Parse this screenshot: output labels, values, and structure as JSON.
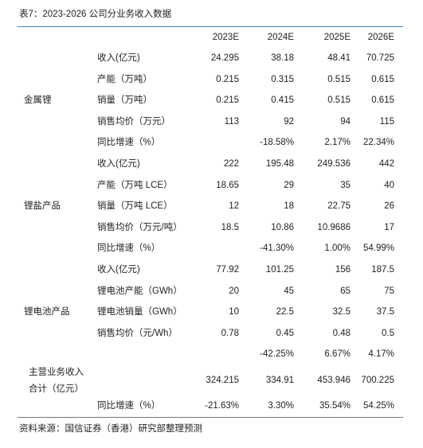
{
  "header": {
    "title": "表7：2023-2026 公司分业务收入数据"
  },
  "table": {
    "columns": [
      "2023E",
      "2024E",
      "2025E",
      "2026E"
    ],
    "groups": [
      {
        "label": "金属锂",
        "rows": [
          {
            "item": "收入(亿元)",
            "values": [
              "24.295",
              "38.18",
              "48.41",
              "70.725"
            ]
          },
          {
            "item": "产能（万吨）",
            "values": [
              "0.215",
              "0.315",
              "0.515",
              "0.615"
            ]
          },
          {
            "item": "销量（万吨）",
            "values": [
              "0.215",
              "0.415",
              "0.515",
              "0.615"
            ]
          },
          {
            "item": "销售均价（万元）",
            "values": [
              "113",
              "92",
              "94",
              "115"
            ]
          },
          {
            "item": "同比增速（%）",
            "values": [
              null,
              "-18.58%",
              "2.17%",
              "22.34%"
            ]
          }
        ]
      },
      {
        "label": "锂盐产品",
        "rows": [
          {
            "item": "收入(亿元)",
            "values": [
              "222",
              "195.48",
              "249.536",
              "442"
            ]
          },
          {
            "item": "产能（万吨 LCE）",
            "values": [
              "18.65",
              "29",
              "35",
              "40"
            ]
          },
          {
            "item": "销量（万吨 LCE）",
            "values": [
              "12",
              "18",
              "22.75",
              "26"
            ]
          },
          {
            "item": "销售均价（万元/吨）",
            "values": [
              "18.5",
              "10.86",
              "10.9686",
              "17"
            ]
          },
          {
            "item": "同比增速（%）",
            "values": [
              null,
              "-41.30%",
              "1.00%",
              "54.99%"
            ]
          }
        ]
      },
      {
        "label": "锂电池产品",
        "rows": [
          {
            "item": "收入(亿元)",
            "values": [
              "77.92",
              "101.25",
              "156",
              "187.5"
            ]
          },
          {
            "item": "锂电池产能（GWh）",
            "values": [
              "20",
              "45",
              "65",
              "75"
            ]
          },
          {
            "item": "锂电池销量（GWh）",
            "values": [
              "10",
              "22.5",
              "32.5",
              "37.5"
            ]
          },
          {
            "item": "销售均价（元/Wh）",
            "values": [
              "0.78",
              "0.45",
              "0.48",
              "0.5"
            ]
          },
          {
            "item": null,
            "values": [
              null,
              "-42.25%",
              "6.67%",
              "4.17%"
            ]
          }
        ]
      }
    ],
    "total": {
      "label": [
        "主营业务收入",
        "合计（亿元）"
      ],
      "rows": [
        {
          "item": null,
          "values": [
            "324.215",
            "334.91",
            "453.946",
            "700.225"
          ]
        },
        {
          "item": "同比增速（%）",
          "values": [
            "-21.63%",
            "3.30%",
            "35.54%",
            "54.25%"
          ]
        }
      ]
    }
  },
  "footer": {
    "source": "资料来源：国信证券（香港）研究部整理预测"
  }
}
